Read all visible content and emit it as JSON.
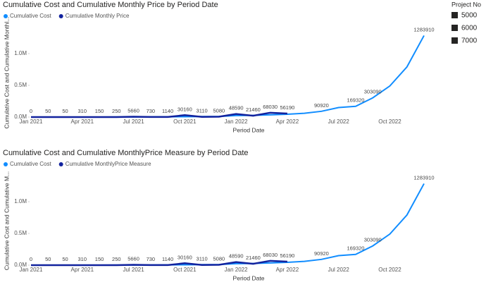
{
  "chart_data": [
    {
      "type": "line",
      "title": "Cumulative Cost and Cumulative Monthly Price by Period Date",
      "x_label": "Period Date",
      "y_label": "Cumulative Cost and Cumulative Monthl...",
      "categories": [
        "Jan 2021",
        null,
        null,
        "Apr 2021",
        null,
        null,
        "Jul 2021",
        null,
        null,
        "Oct 2021",
        null,
        null,
        "Jan 2022",
        null,
        null,
        "Apr 2022",
        null,
        null,
        "Jul 2022",
        null,
        null,
        "Oct 2022",
        null,
        null
      ],
      "ylim": [
        0,
        1400000
      ],
      "yticks": [
        {
          "value": 0,
          "label": "0.0M"
        },
        {
          "value": 500000,
          "label": "0.5M"
        },
        {
          "value": 1000000,
          "label": "1.0M"
        }
      ],
      "series": [
        {
          "name": "Cumulative Cost",
          "color": "#118dff",
          "values": [
            0,
            0,
            0,
            0,
            0,
            1000,
            2000,
            3000,
            4000,
            6000,
            8000,
            10000,
            23000,
            27000,
            35000,
            45000,
            60000,
            90920,
            150000,
            169320,
            303090,
            490000,
            790000,
            1283910
          ],
          "value_labels": [
            null,
            null,
            null,
            null,
            null,
            null,
            null,
            null,
            null,
            null,
            null,
            null,
            null,
            null,
            null,
            null,
            null,
            "90920",
            null,
            "169320",
            "303090",
            null,
            null,
            "1283910"
          ]
        },
        {
          "name": "Cumulative Monthly Price",
          "color": "#12239e",
          "values": [
            0,
            50,
            50,
            310,
            150,
            250,
            5660,
            730,
            1140,
            30160,
            3110,
            5080,
            48590,
            21460,
            68030,
            56190,
            null,
            null,
            null,
            null,
            null,
            null,
            null,
            null
          ],
          "value_labels": [
            "0",
            "50",
            "50",
            "310",
            "150",
            "250",
            "5660",
            "730",
            "1140",
            "30160",
            "3110",
            "5080",
            "48590",
            "21460",
            "68030",
            "56190",
            null,
            null,
            null,
            null,
            null,
            null,
            null,
            null
          ]
        }
      ]
    },
    {
      "type": "line",
      "title": "Cumulative Cost and Cumulative MonthlyPrice Measure by Period Date",
      "x_label": "Period Date",
      "y_label": "Cumulative Cost and Cumulative M...",
      "categories": [
        "Jan 2021",
        null,
        null,
        "Apr 2021",
        null,
        null,
        "Jul 2021",
        null,
        null,
        "Oct 2021",
        null,
        null,
        "Jan 2022",
        null,
        null,
        "Apr 2022",
        null,
        null,
        "Jul 2022",
        null,
        null,
        "Oct 2022",
        null,
        null
      ],
      "ylim": [
        0,
        1400000
      ],
      "yticks": [
        {
          "value": 0,
          "label": "0.0M"
        },
        {
          "value": 500000,
          "label": "0.5M"
        },
        {
          "value": 1000000,
          "label": "1.0M"
        }
      ],
      "series": [
        {
          "name": "Cumulative Cost",
          "color": "#118dff",
          "values": [
            0,
            0,
            0,
            0,
            0,
            1000,
            2000,
            3000,
            4000,
            6000,
            8000,
            10000,
            23000,
            27000,
            35000,
            45000,
            60000,
            90920,
            150000,
            169320,
            303090,
            490000,
            790000,
            1283910
          ],
          "value_labels": [
            null,
            null,
            null,
            null,
            null,
            null,
            null,
            null,
            null,
            null,
            null,
            null,
            null,
            null,
            null,
            null,
            null,
            "90920",
            null,
            "169320",
            "303090",
            null,
            null,
            "1283910"
          ]
        },
        {
          "name": "Cumulative MonthlyPrice Measure",
          "color": "#12239e",
          "values": [
            0,
            50,
            50,
            310,
            150,
            250,
            5660,
            730,
            1140,
            30160,
            3110,
            5080,
            48590,
            21460,
            68030,
            56190,
            null,
            null,
            null,
            null,
            null,
            null,
            null,
            null
          ],
          "value_labels": [
            "0",
            "50",
            "50",
            "310",
            "150",
            "250",
            "5660",
            "730",
            "1140",
            "30160",
            "3110",
            "5080",
            "48590",
            "21460",
            "68030",
            "56190",
            null,
            null,
            null,
            null,
            null,
            null,
            null,
            null
          ]
        }
      ]
    }
  ],
  "slicer": {
    "title": "Project No",
    "items": [
      "5000",
      "6000",
      "7000"
    ]
  }
}
